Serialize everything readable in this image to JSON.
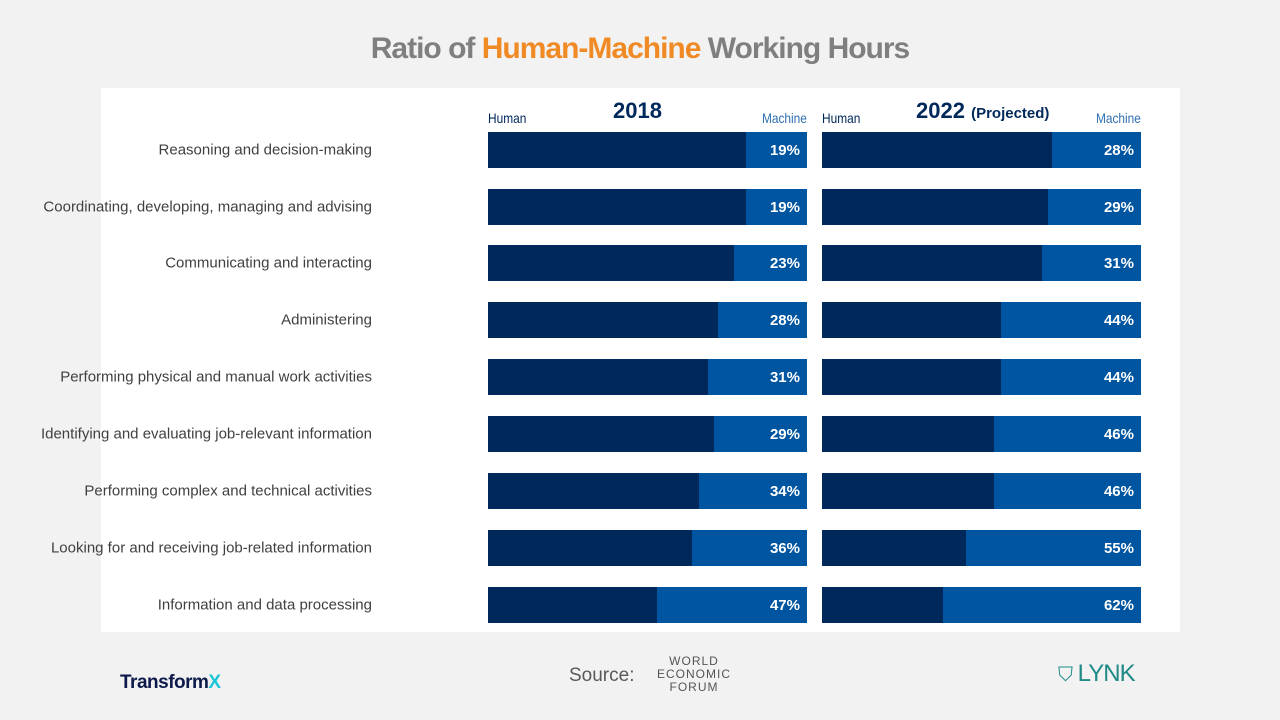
{
  "title": {
    "pre": "Ratio of ",
    "highlight": "Human-Machine",
    "post": " Working Hours"
  },
  "labels": {
    "human": "Human",
    "machine": "Machine"
  },
  "footer": {
    "source": "Source:",
    "wef": [
      "WORLD",
      "ECONOMIC",
      "FORUM"
    ],
    "brand_left": "Transform",
    "brand_left_x": "X",
    "brand_right": "LYNK"
  },
  "colors": {
    "human": "#00285a",
    "machine": "#0055a0",
    "accent": "#f08a24"
  },
  "chart_data": [
    {
      "type": "bar",
      "stacked": true,
      "orientation": "horizontal",
      "title": "2018",
      "subtitle": "",
      "categories": [
        "Reasoning and decision-making",
        "Coordinating, developing, managing and advising",
        "Communicating and interacting",
        "Administering",
        "Performing physical and manual work activities",
        "Identifying and evaluating job-relevant information",
        "Performing complex and technical activities",
        "Looking for and receiving job-related information",
        "Information and data processing"
      ],
      "series": [
        {
          "name": "Human",
          "values": [
            81,
            81,
            77,
            72,
            69,
            71,
            66,
            64,
            53
          ]
        },
        {
          "name": "Machine",
          "values": [
            19,
            19,
            23,
            28,
            31,
            29,
            34,
            36,
            47
          ]
        }
      ],
      "xlim": [
        0,
        100
      ]
    },
    {
      "type": "bar",
      "stacked": true,
      "orientation": "horizontal",
      "title": "2022",
      "subtitle": "(Projected)",
      "categories": [
        "Reasoning and decision-making",
        "Coordinating, developing, managing and advising",
        "Communicating and interacting",
        "Administering",
        "Performing physical and manual work activities",
        "Identifying and evaluating job-relevant information",
        "Performing complex and technical activities",
        "Looking for and receiving job-related information",
        "Information and data processing"
      ],
      "series": [
        {
          "name": "Human",
          "values": [
            72,
            71,
            69,
            56,
            56,
            54,
            54,
            45,
            38
          ]
        },
        {
          "name": "Machine",
          "values": [
            28,
            29,
            31,
            44,
            44,
            46,
            46,
            55,
            62
          ]
        }
      ],
      "xlim": [
        0,
        100
      ]
    }
  ]
}
